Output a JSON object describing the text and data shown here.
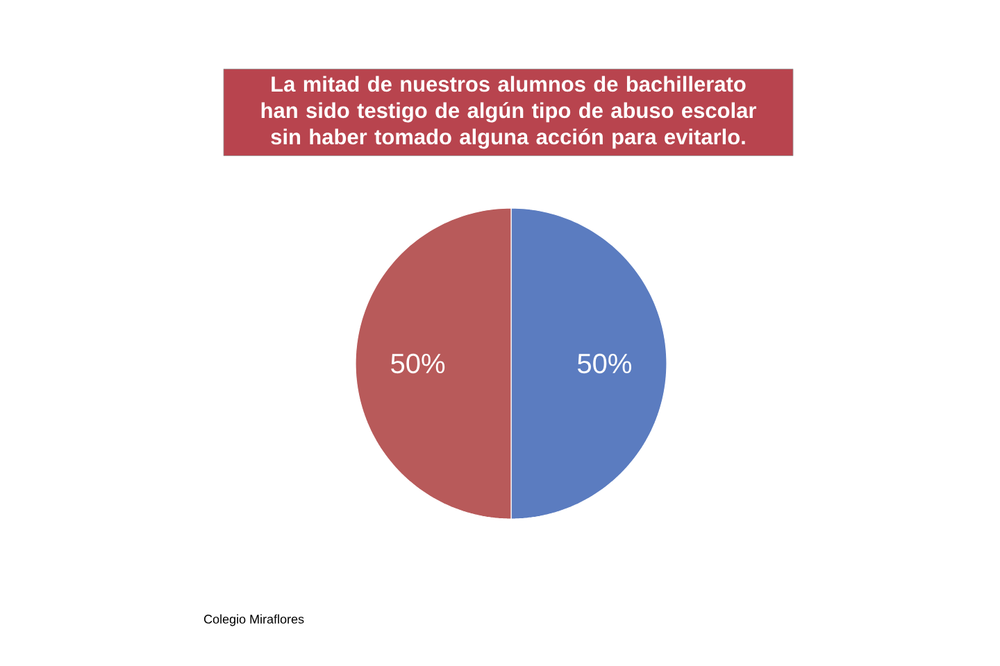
{
  "chart_data": {
    "type": "pie",
    "title": "La mitad de nuestros alumnos de bachillerato han sido testigo de algún tipo de abuso escolar sin haber tomado alguna acción para evitarlo.",
    "categories": [
      null,
      null
    ],
    "values": [
      50,
      50
    ],
    "colors": [
      "#5b7cc0",
      "#b85a5a"
    ],
    "value_labels": [
      "50%",
      "50%"
    ],
    "annotations": [
      "Colegio Miraflores"
    ]
  }
}
